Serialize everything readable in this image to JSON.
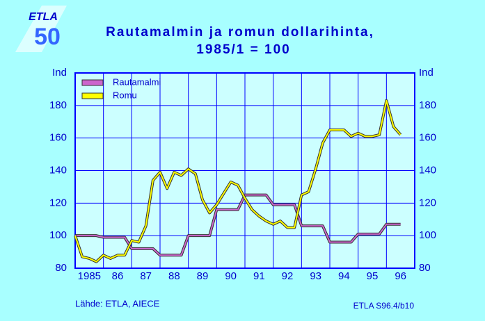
{
  "logo": {
    "text": "ETLA",
    "number": "50"
  },
  "chart_data": {
    "type": "line",
    "title": "Rautamalmin ja romun dollarihinta,",
    "subtitle": "1985/1  =  100",
    "x": [
      1985,
      1985.25,
      1985.5,
      1985.75,
      1986,
      1986.25,
      1986.5,
      1986.75,
      1987,
      1987.25,
      1987.5,
      1987.75,
      1988,
      1988.25,
      1988.5,
      1988.75,
      1989,
      1989.25,
      1989.5,
      1989.75,
      1990,
      1990.25,
      1990.5,
      1990.75,
      1991,
      1991.25,
      1991.5,
      1991.75,
      1992,
      1992.25,
      1992.5,
      1992.75,
      1993,
      1993.25,
      1993.5,
      1993.75,
      1994,
      1994.25,
      1994.5,
      1994.75,
      1995,
      1995.25,
      1995.5,
      1995.75,
      1996,
      1996.25,
      1996.5
    ],
    "series": [
      {
        "name": "Rautamalmi",
        "color": "#cc66cc",
        "values": [
          100,
          100,
          100,
          100,
          99,
          99,
          99,
          99,
          92,
          92,
          92,
          92,
          88,
          88,
          88,
          88,
          100,
          100,
          100,
          100,
          116,
          116,
          116,
          116,
          125,
          125,
          125,
          125,
          119,
          119,
          119,
          119,
          106,
          106,
          106,
          106,
          96,
          96,
          96,
          96,
          101,
          101,
          101,
          101,
          107,
          107,
          107
        ]
      },
      {
        "name": "Romu",
        "color": "#ffff00",
        "values": [
          100,
          87,
          86,
          84,
          88,
          86,
          88,
          88,
          97,
          96,
          106,
          134,
          139,
          129,
          139,
          137,
          141,
          138,
          122,
          114,
          119,
          126,
          133,
          131,
          123,
          116,
          112,
          109,
          107,
          109,
          105,
          105,
          125,
          127,
          141,
          157,
          165,
          165,
          165,
          161,
          163,
          161,
          161,
          162,
          183,
          167,
          162
        ]
      }
    ],
    "xlim": [
      1985,
      1997
    ],
    "xticks": [
      {
        "value": 1985.5,
        "label": "1985"
      },
      {
        "value": 1986.5,
        "label": "86"
      },
      {
        "value": 1987.5,
        "label": "87"
      },
      {
        "value": 1988.5,
        "label": "88"
      },
      {
        "value": 1989.5,
        "label": "89"
      },
      {
        "value": 1990.5,
        "label": "90"
      },
      {
        "value": 1991.5,
        "label": "91"
      },
      {
        "value": 1992.5,
        "label": "92"
      },
      {
        "value": 1993.5,
        "label": "93"
      },
      {
        "value": 1994.5,
        "label": "94"
      },
      {
        "value": 1995.5,
        "label": "95"
      },
      {
        "value": 1996.5,
        "label": "96"
      }
    ],
    "ylim": [
      80,
      200
    ],
    "yticks": [
      80,
      100,
      120,
      140,
      160,
      180,
      {
        "value": 200,
        "label": "Ind"
      }
    ],
    "grid": true,
    "legend": "top-left",
    "source": "Lähde:  ETLA, AIECE",
    "code": "ETLA S96.4/b10"
  }
}
